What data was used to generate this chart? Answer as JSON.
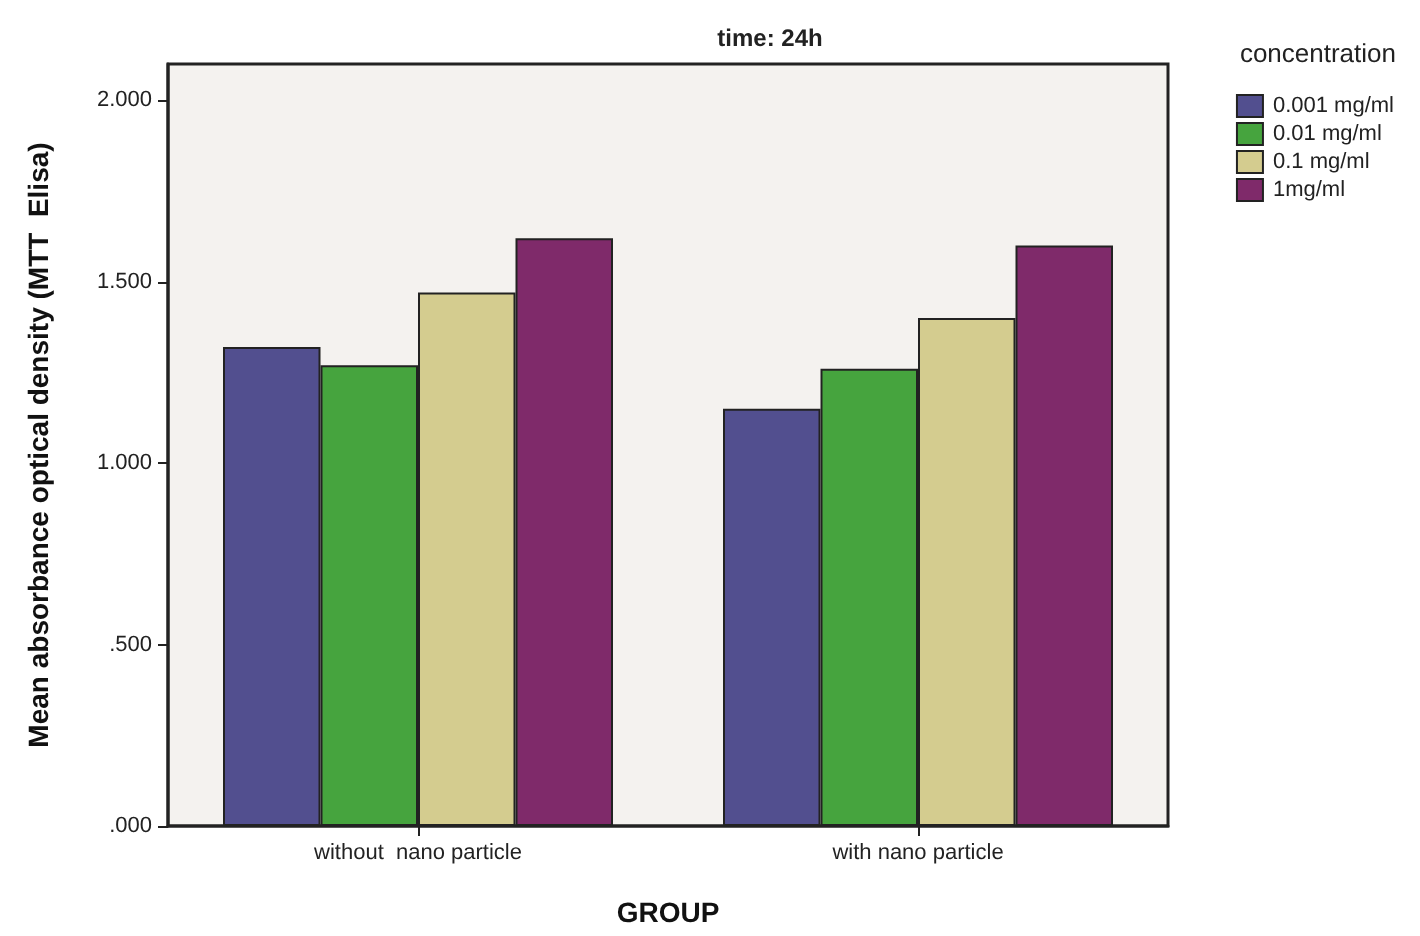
{
  "chart_data": {
    "type": "bar",
    "title": "time: 24h",
    "xlabel": "GROUP",
    "ylabel": "Mean absorbance optical density (MTT  Elisa)",
    "legend_title": "concentration",
    "categories": [
      "without  nano particle",
      "with nano particle"
    ],
    "series": [
      {
        "name": "0.001 mg/ml",
        "color": "#524f8f",
        "values": [
          1.32,
          1.15
        ]
      },
      {
        "name": "0.01 mg/ml",
        "color": "#46a43e",
        "values": [
          1.27,
          1.26
        ]
      },
      {
        "name": "0.1 mg/ml",
        "color": "#d4cc8f",
        "values": [
          1.47,
          1.4
        ]
      },
      {
        "name": "1mg/ml",
        "color": "#7f2a6a",
        "values": [
          1.62,
          1.6
        ]
      }
    ],
    "ylim": [
      0,
      2.1
    ],
    "yticks": [
      {
        "value": 0,
        "label": ".000"
      },
      {
        "value": 0.5,
        "label": ".500"
      },
      {
        "value": 1,
        "label": "1.000"
      },
      {
        "value": 1.5,
        "label": "1.500"
      },
      {
        "value": 2,
        "label": "2.000"
      }
    ],
    "grid": false,
    "legend": "top right"
  }
}
